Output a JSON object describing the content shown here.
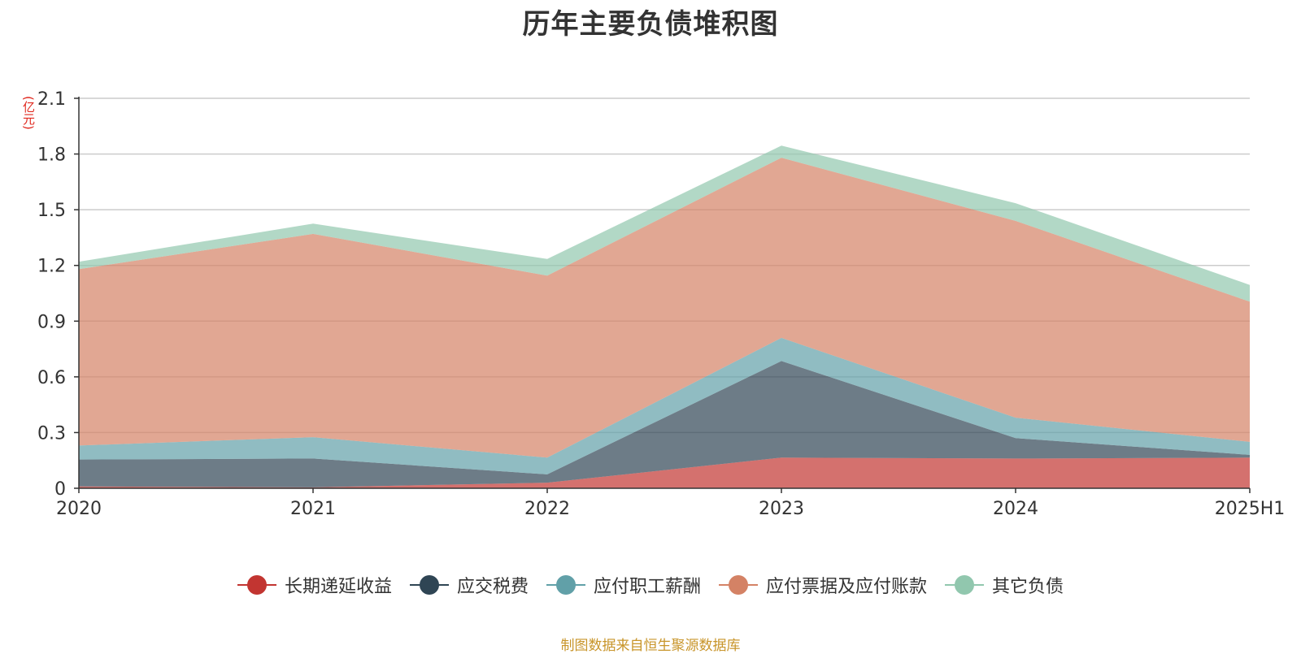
{
  "chart_data": {
    "type": "area",
    "stacked": true,
    "title": "历年主要负债堆积图",
    "unit_label": "(亿元)",
    "categories": [
      "2020",
      "2021",
      "2022",
      "2023",
      "2024",
      "2025H1"
    ],
    "ylim": [
      0,
      2.1
    ],
    "yticks": [
      "0",
      "0.3",
      "0.6",
      "0.9",
      "1.2",
      "1.5",
      "1.8",
      "2.1"
    ],
    "ytick_values": [
      0,
      0.3,
      0.6,
      0.9,
      1.2,
      1.5,
      1.8,
      2.1
    ],
    "grid": true,
    "legend_position": "bottom",
    "series": [
      {
        "name": "长期递延收益",
        "color": "#c23531",
        "values": [
          0.01,
          0.005,
          0.03,
          0.165,
          0.16,
          0.165
        ]
      },
      {
        "name": "应交税费",
        "color": "#2f4554",
        "values": [
          0.145,
          0.155,
          0.045,
          0.52,
          0.11,
          0.015
        ]
      },
      {
        "name": "应付职工薪酬",
        "color": "#61a0a8",
        "values": [
          0.075,
          0.115,
          0.09,
          0.125,
          0.11,
          0.07
        ]
      },
      {
        "name": "应付票据及应付账款",
        "color": "#d48265",
        "values": [
          0.95,
          1.095,
          0.98,
          0.97,
          1.06,
          0.755
        ]
      },
      {
        "name": "其它负债",
        "color": "#91c7ae",
        "values": [
          0.04,
          0.055,
          0.09,
          0.065,
          0.095,
          0.09
        ]
      }
    ]
  },
  "source_note": "制图数据来自恒生聚源数据库"
}
